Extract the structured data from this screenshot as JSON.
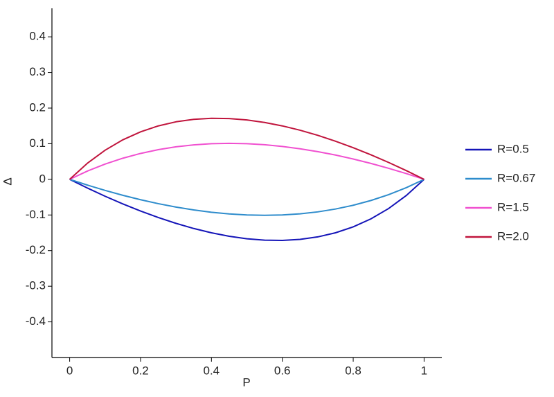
{
  "chart_data": {
    "type": "line",
    "x_label": "P",
    "y_label": "Δ",
    "x": [
      0,
      0.05,
      0.1,
      0.15,
      0.2,
      0.25,
      0.3,
      0.35,
      0.4,
      0.45,
      0.5,
      0.55,
      0.6,
      0.65,
      0.7,
      0.75,
      0.8,
      0.85,
      0.9,
      0.95,
      1
    ],
    "series": [
      {
        "name": "R=0.5",
        "color": "#1414b8",
        "values": [
          0,
          -0.0244,
          -0.0474,
          -0.0689,
          -0.0889,
          -0.1071,
          -0.1235,
          -0.1379,
          -0.15,
          -0.1597,
          -0.1667,
          -0.1707,
          -0.1714,
          -0.1685,
          -0.1615,
          -0.15,
          -0.1333,
          -0.1109,
          -0.0818,
          -0.0452,
          0
        ]
      },
      {
        "name": "R=0.67",
        "color": "#2e8ccc",
        "values": [
          0,
          -0.0161,
          -0.031,
          -0.0447,
          -0.0571,
          -0.0682,
          -0.0778,
          -0.0858,
          -0.0923,
          -0.0971,
          -0.1,
          -0.101,
          -0.1,
          -0.0968,
          -0.0913,
          -0.0833,
          -0.0727,
          -0.0593,
          -0.0429,
          -0.0232,
          0
        ]
      },
      {
        "name": "R=1.5",
        "color": "#f050d0",
        "values": [
          0,
          0.0232,
          0.0429,
          0.0593,
          0.0727,
          0.0833,
          0.0913,
          0.0968,
          0.1,
          0.101,
          0.1,
          0.0971,
          0.0923,
          0.0858,
          0.0778,
          0.0682,
          0.0571,
          0.0447,
          0.031,
          0.0161,
          0
        ]
      },
      {
        "name": "R=2.0",
        "color": "#c0143c",
        "values": [
          0,
          0.0452,
          0.0818,
          0.1109,
          0.1333,
          0.15,
          0.1615,
          0.1685,
          0.1714,
          0.1707,
          0.1667,
          0.1597,
          0.15,
          0.1379,
          0.1235,
          0.1071,
          0.0889,
          0.0689,
          0.0474,
          0.0244,
          0
        ]
      }
    ],
    "xlim": [
      -0.05,
      1.05
    ],
    "xticks": [
      0,
      0.2,
      0.4,
      0.6,
      0.8,
      1
    ],
    "ylim": [
      -0.5,
      0.48
    ],
    "yticks": [
      -0.4,
      -0.3,
      -0.2,
      -0.1,
      0,
      0.1,
      0.2,
      0.3,
      0.4
    ],
    "legend": "right"
  }
}
